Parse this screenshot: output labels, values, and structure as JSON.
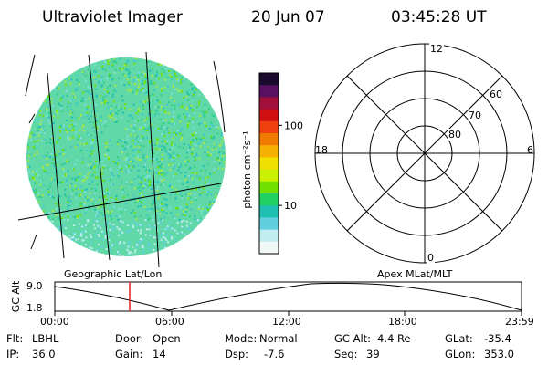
{
  "header": {
    "instrument": "Ultraviolet Imager",
    "date": "20 Jun 07",
    "time": "03:45:28 UT"
  },
  "image_panel": {
    "caption": "Geographic Lat/Lon"
  },
  "colorbar": {
    "unit_label": "photon cm⁻²s⁻¹",
    "ticks": [
      {
        "label": "100",
        "value": 100
      },
      {
        "label": "10",
        "value": 10
      }
    ],
    "colors": [
      "#1a0a2e",
      "#5a1060",
      "#a0103a",
      "#d01010",
      "#f04010",
      "#f07a00",
      "#f5b000",
      "#f0e000",
      "#c8f000",
      "#70e000",
      "#20d060",
      "#20c0b0",
      "#60d0e0",
      "#c0eef0",
      "#f0f8f8"
    ]
  },
  "polar_plot": {
    "caption": "Apex MLat/MLT",
    "mlt_labels": {
      "top": "12",
      "left": "18",
      "right": "6",
      "bottom": "0"
    },
    "lat_labels": [
      "60",
      "70",
      "80"
    ]
  },
  "altitude_strip": {
    "ylabel": "GC Alt",
    "ytick_top": "9.0",
    "ytick_bottom": "1.8",
    "x_ticks": [
      "00:00",
      "06:00",
      "12:00",
      "18:00",
      "23:59"
    ],
    "marker_time": "03:45"
  },
  "info": {
    "flt_label": "Flt:",
    "flt_value": "LBHL",
    "ip_label": "IP:",
    "ip_value": "36.0",
    "door_label": "Door:",
    "door_value": "Open",
    "gain_label": "Gain:",
    "gain_value": "14",
    "mode_label": "Mode:",
    "mode_value": "Normal",
    "dsp_label": "Dsp:",
    "dsp_value": "-7.6",
    "gcalt_label": "GC Alt:",
    "gcalt_value": "4.4 Re",
    "seq_label": "Seq:",
    "seq_value": "39",
    "glat_label": "GLat:",
    "glat_value": "-35.4",
    "glon_label": "GLon:",
    "glon_value": "353.0"
  }
}
